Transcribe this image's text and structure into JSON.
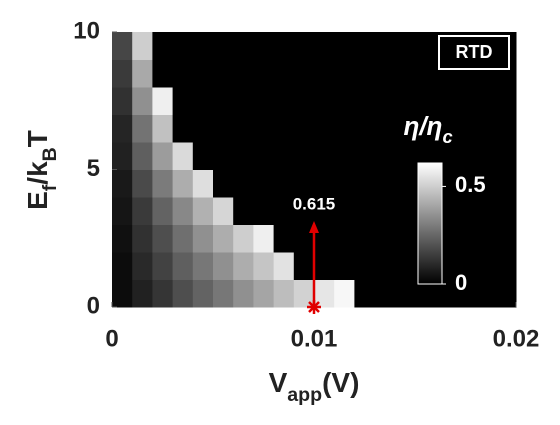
{
  "chart_data": {
    "type": "heatmap",
    "xlabel": [
      {
        "text": "V",
        "sub": false
      },
      {
        "text": "app",
        "sub": true
      },
      {
        "text": "(V)",
        "sub": false
      }
    ],
    "ylabel": [
      {
        "text": "E",
        "sub": false
      },
      {
        "text": "f",
        "sub": true
      },
      {
        "text": "/k",
        "sub": false
      },
      {
        "text": "B",
        "sub": true
      },
      {
        "text": "T",
        "sub": false
      }
    ],
    "xlim": [
      0,
      0.02
    ],
    "xticks": [
      0,
      0.01,
      0.02
    ],
    "ylim": [
      0,
      10
    ],
    "yticks": [
      0,
      5,
      10
    ],
    "xbins": [
      0,
      0.001,
      0.002,
      0.003,
      0.004,
      0.005,
      0.006,
      0.007,
      0.008,
      0.009,
      0.01,
      0.011,
      0.012,
      0.013,
      0.014,
      0.015,
      0.016,
      0.017,
      0.018,
      0.019,
      0.02
    ],
    "ybins": [
      0,
      1,
      2,
      3,
      4,
      5,
      6,
      7,
      8,
      9,
      10
    ],
    "z": [
      [
        0.03,
        0.08,
        0.13,
        0.19,
        0.24,
        0.29,
        0.35,
        0.4,
        0.46,
        0.51,
        0.56,
        0.6,
        0,
        0,
        0,
        0,
        0,
        0,
        0,
        0
      ],
      [
        0.03,
        0.1,
        0.16,
        0.23,
        0.29,
        0.35,
        0.42,
        0.48,
        0.55,
        0,
        0,
        0,
        0,
        0,
        0,
        0,
        0,
        0,
        0,
        0
      ],
      [
        0.04,
        0.12,
        0.19,
        0.27,
        0.35,
        0.42,
        0.5,
        0.58,
        0,
        0,
        0,
        0,
        0,
        0,
        0,
        0,
        0,
        0,
        0,
        0
      ],
      [
        0.05,
        0.14,
        0.24,
        0.33,
        0.43,
        0.52,
        0,
        0,
        0,
        0,
        0,
        0,
        0,
        0,
        0,
        0,
        0,
        0,
        0,
        0
      ],
      [
        0.06,
        0.18,
        0.3,
        0.42,
        0.54,
        0,
        0,
        0,
        0,
        0,
        0,
        0,
        0,
        0,
        0,
        0,
        0,
        0,
        0,
        0
      ],
      [
        0.08,
        0.23,
        0.38,
        0.53,
        0,
        0,
        0,
        0,
        0,
        0,
        0,
        0,
        0,
        0,
        0,
        0,
        0,
        0,
        0,
        0
      ],
      [
        0.09,
        0.28,
        0.47,
        0,
        0,
        0,
        0,
        0,
        0,
        0,
        0,
        0,
        0,
        0,
        0,
        0,
        0,
        0,
        0,
        0
      ],
      [
        0.12,
        0.35,
        0.58,
        0,
        0,
        0,
        0,
        0,
        0,
        0,
        0,
        0,
        0,
        0,
        0,
        0,
        0,
        0,
        0,
        0
      ],
      [
        0.14,
        0.41,
        0,
        0,
        0,
        0,
        0,
        0,
        0,
        0,
        0,
        0,
        0,
        0,
        0,
        0,
        0,
        0,
        0,
        0
      ],
      [
        0.17,
        0.5,
        0,
        0,
        0,
        0,
        0,
        0,
        0,
        0,
        0,
        0,
        0,
        0,
        0,
        0,
        0,
        0,
        0,
        0
      ]
    ],
    "clim": [
      0,
      0.62
    ],
    "cticks": [
      0,
      0.5
    ],
    "colorbar_label": [
      {
        "text": "η/η",
        "sub": false
      },
      {
        "text": "c",
        "sub": true
      }
    ],
    "legend": "RTD",
    "marker": {
      "x": 0.01,
      "y": 0,
      "label": "0.615",
      "color": "#e00000"
    }
  }
}
